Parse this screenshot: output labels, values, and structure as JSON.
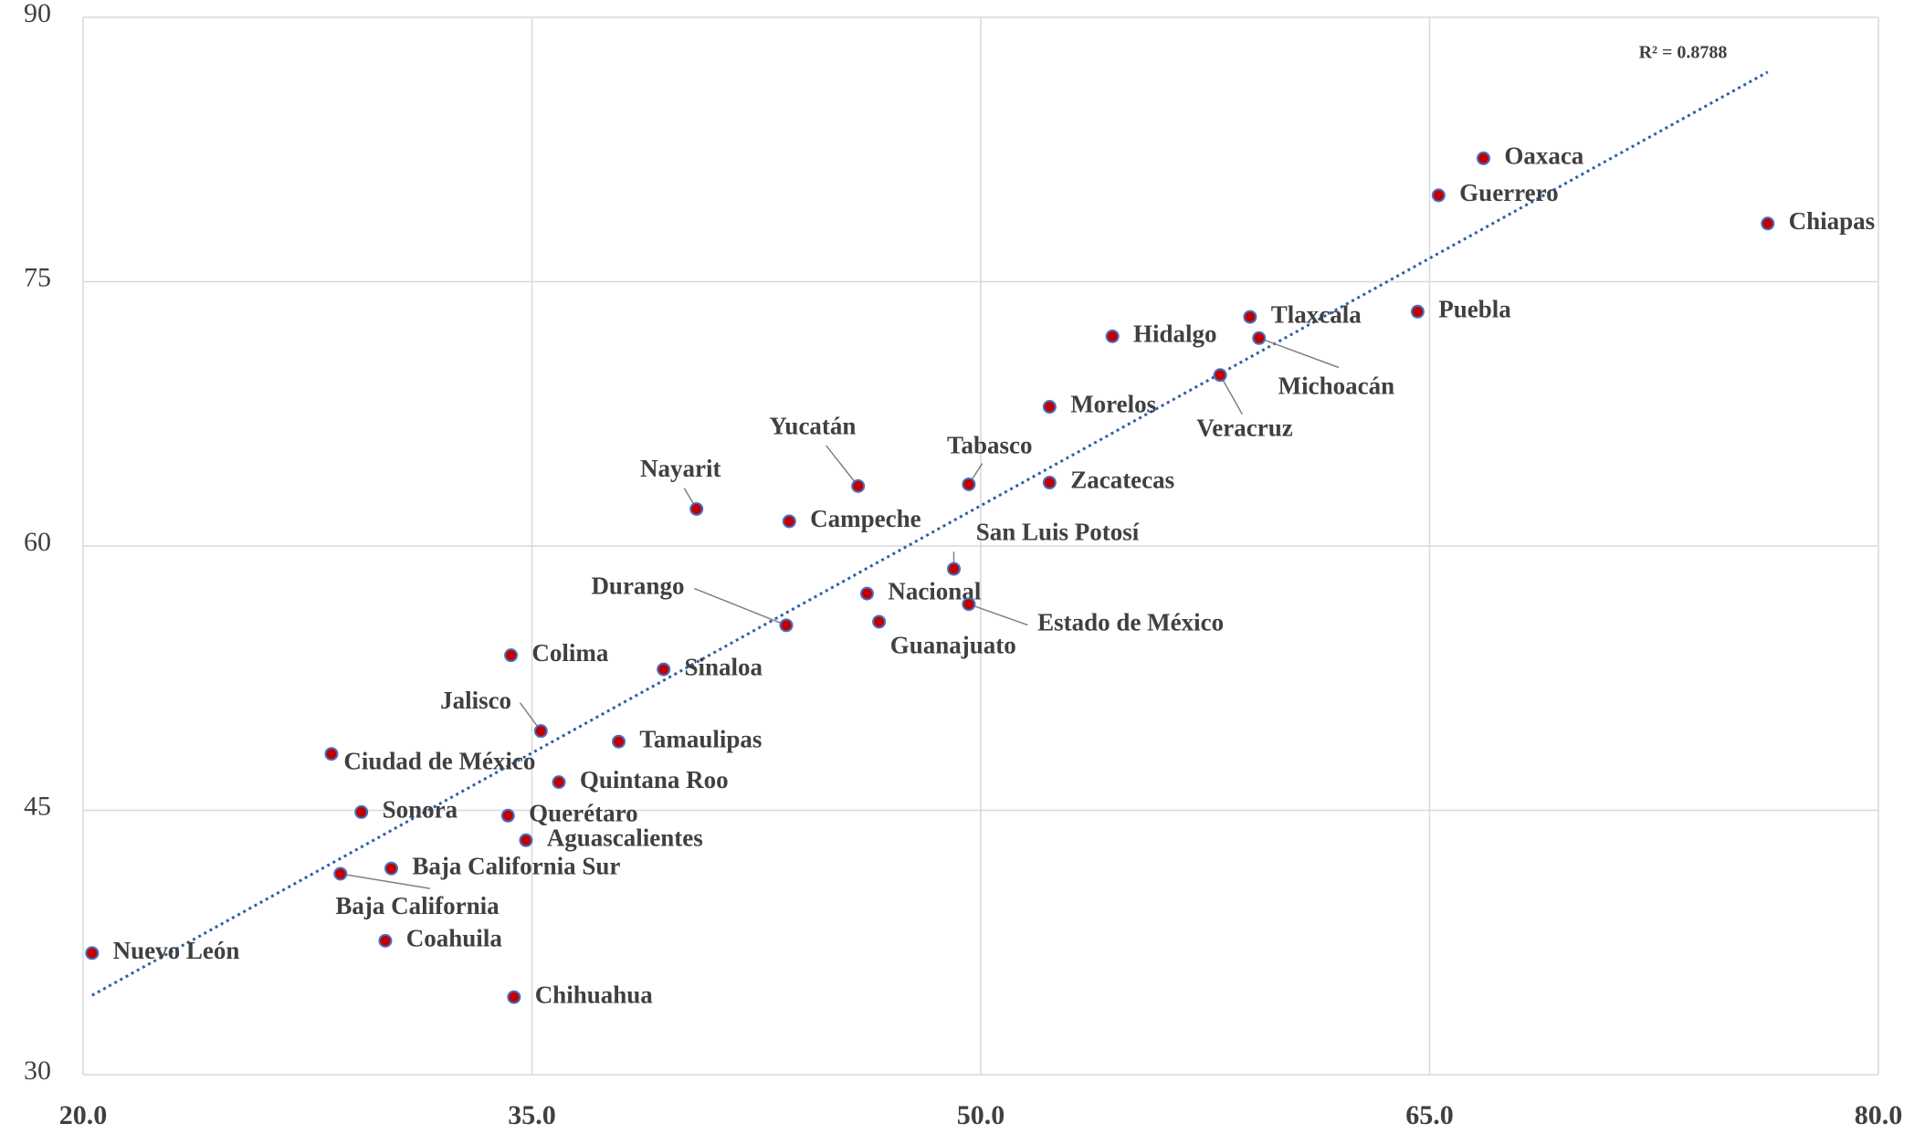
{
  "chart_data": {
    "type": "scatter",
    "point_labels": [
      "Nuevo León",
      "Chihuahua",
      "Coahuila",
      "Baja California",
      "Baja California Sur",
      "Sonora",
      "Ciudad de México",
      "Querétaro",
      "Aguascalientes",
      "Quintana Roo",
      "Jalisco",
      "Tamaulipas",
      "Colima",
      "Sinaloa",
      "Durango",
      "Nacional",
      "Guanajuato",
      "Estado de México",
      "San Luis Potosí",
      "Campeche",
      "Nayarit",
      "Yucatán",
      "Tabasco",
      "Zacatecas",
      "Morelos",
      "Hidalgo",
      "Veracruz",
      "Tlaxcala",
      "Michoacán",
      "Puebla",
      "Guerrero",
      "Oaxaca",
      "Chiapas"
    ],
    "x": [
      20.3,
      34.4,
      30.1,
      28.6,
      30.3,
      29.3,
      28.3,
      34.2,
      34.8,
      35.9,
      35.3,
      37.9,
      34.3,
      39.4,
      43.5,
      46.2,
      46.6,
      49.6,
      49.1,
      43.6,
      40.5,
      45.9,
      49.6,
      52.3,
      52.3,
      54.4,
      58.0,
      59.0,
      59.3,
      64.6,
      65.3,
      66.8,
      76.3
    ],
    "values": [
      36.9,
      34.4,
      37.6,
      41.4,
      41.7,
      44.9,
      48.2,
      44.7,
      43.3,
      46.6,
      49.5,
      48.9,
      53.8,
      53.0,
      55.5,
      57.3,
      55.7,
      56.7,
      58.7,
      61.4,
      62.1,
      63.4,
      63.5,
      63.6,
      67.9,
      71.9,
      69.7,
      73.0,
      71.8,
      73.3,
      79.9,
      82.0,
      78.3
    ],
    "color": "#c00000",
    "edge_color": "#4472c4",
    "trendline": {
      "x": [
        20.3,
        76.3
      ],
      "values": [
        34.5,
        86.9
      ],
      "color": "#2e5fa8"
    },
    "annotation": "R² = 0.8788",
    "xlim": [
      20,
      80
    ],
    "xticks": [
      {
        "value": 20,
        "label": "20.0"
      },
      {
        "value": 35,
        "label": "35.0"
      },
      {
        "value": 50,
        "label": "50.0"
      },
      {
        "value": 65,
        "label": "65.0"
      },
      {
        "value": 80,
        "label": "80.0"
      }
    ],
    "ylim": [
      30,
      90
    ],
    "yticks": [
      30,
      45,
      60,
      75,
      90
    ],
    "grid": true
  }
}
